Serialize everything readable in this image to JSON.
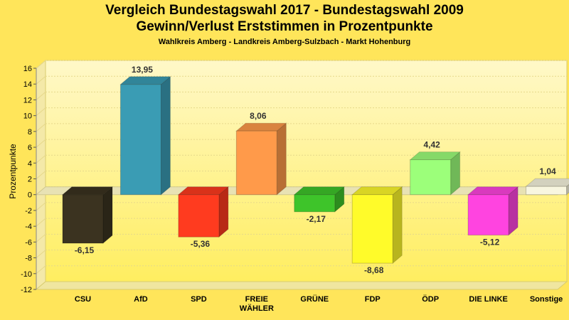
{
  "title": "Vergleich Bundestagswahl 2017 - Bundestagswahl 2009",
  "subtitle": "Gewinn/Verlust Erststimmen in Prozentpunkte",
  "caption": "Wahlkreis Amberg - Landkreis Amberg-Sulzbach - Markt Hohenburg",
  "chart_data": {
    "type": "bar",
    "title": "Vergleich Bundestagswahl 2017 - Bundestagswahl 2009",
    "subtitle": "Gewinn/Verlust Erststimmen in Prozentpunkte",
    "xlabel": "",
    "ylabel": "Prozentpunkte",
    "ylim": [
      -12,
      16
    ],
    "yticks": [
      16,
      14,
      12,
      10,
      8,
      6,
      4,
      2,
      0,
      -2,
      -4,
      -6,
      -8,
      -10,
      -12
    ],
    "grid": true,
    "categories": [
      [
        "CSU"
      ],
      [
        "AfD"
      ],
      [
        "SPD"
      ],
      [
        "FREIE",
        "WÄHLER"
      ],
      [
        "GRÜNE"
      ],
      [
        "FDP"
      ],
      [
        "ÖDP"
      ],
      [
        "DIE LINKE"
      ],
      [
        "Sonstige"
      ]
    ],
    "values": [
      -6.15,
      13.95,
      -5.36,
      8.06,
      -2.17,
      -8.68,
      4.42,
      -5.12,
      1.04
    ],
    "labels": [
      "-6,15",
      "13,95",
      "-5,36",
      "8,06",
      "-2,17",
      "-8,68",
      "4,42",
      "-5,12",
      "1,04"
    ],
    "colors": [
      "#3b3320",
      "#3a9cb4",
      "#ff3b1f",
      "#ff9a4a",
      "#3ec42a",
      "#fffb2a",
      "#9cff7a",
      "#ff44e0",
      "#f8f6e0"
    ]
  }
}
